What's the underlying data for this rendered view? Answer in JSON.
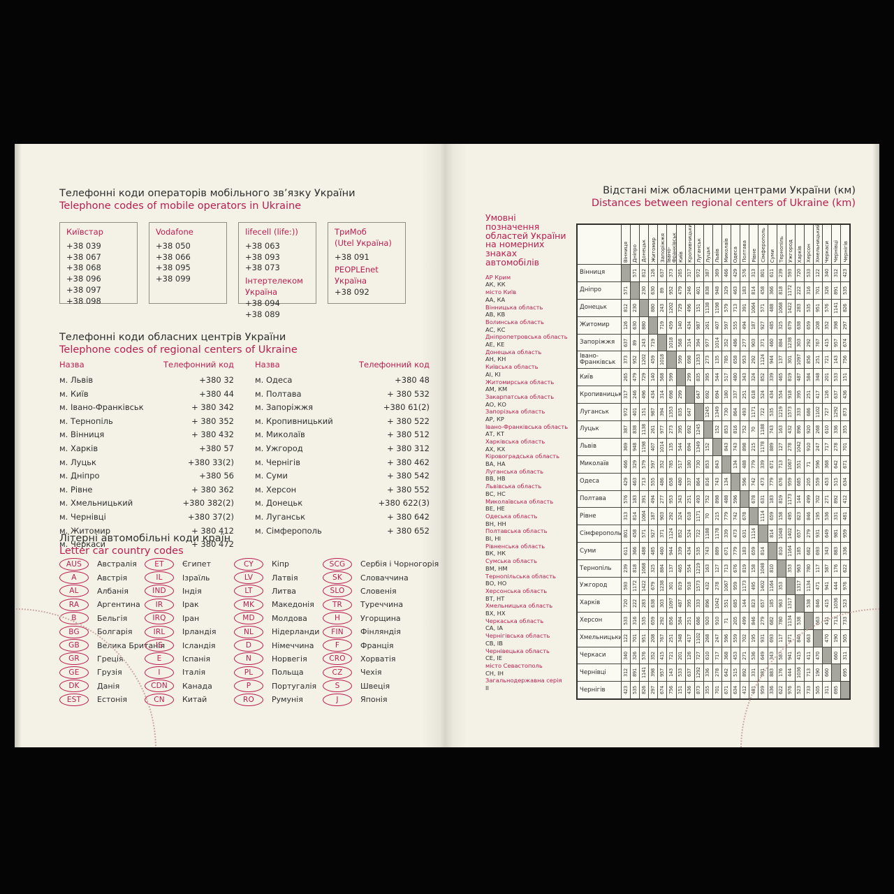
{
  "left": {
    "mobile": {
      "title_uk": "Телефонні коди операторів мобільного зв’язку України",
      "title_en": "Telephone codes of mobile operators in Ukraine",
      "operators": [
        {
          "name": "Київстар",
          "codes": [
            "+38 039",
            "+38 067",
            "+38 068",
            "+38 096",
            "+38 097",
            "+38 098"
          ]
        },
        {
          "name": "Vodafone",
          "codes": [
            "+38 050",
            "+38 066",
            "+38 095",
            "+38 099"
          ]
        },
        {
          "name": "lifecell (life:))",
          "codes": [
            "+38 063",
            "+38 093",
            "+38 073"
          ],
          "name2": "Інтертелеком Україна",
          "codes2": [
            "+38 094",
            "+38 089"
          ]
        },
        {
          "name": "ТриМоб\n(Utel Україна)",
          "codes": [
            "+38 091"
          ],
          "name2": "PEOPLEnet\nУкраїна",
          "codes2": [
            "+38 092"
          ]
        }
      ]
    },
    "city": {
      "title_uk": "Телефонні коди обласних центрів України",
      "title_en": "Telephone codes of regional centers of Ukraine",
      "header_name": "Назва",
      "header_code": "Телефонний код",
      "col1": [
        [
          "м. Львів",
          "+380 32"
        ],
        [
          "м. Київ",
          "+380 44"
        ],
        [
          "м. Івано-Франківськ",
          "+ 380 342"
        ],
        [
          "м. Тернопіль",
          "+ 380 352"
        ],
        [
          "м. Вінниця",
          "+ 380 432"
        ],
        [
          "м. Харків",
          "+380 57"
        ],
        [
          "м. Луцьк",
          "+380 33(2)"
        ],
        [
          "м. Дніпро",
          "+380 56"
        ],
        [
          "м. Рівне",
          "+ 380 362"
        ],
        [
          "м. Хмельницький",
          "+380 382(2)"
        ],
        [
          "м. Чернівці",
          "+380 37(2)"
        ],
        [
          "м. Житомир",
          "+ 380 412"
        ],
        [
          "м. Черкаси",
          "+ 380 472"
        ]
      ],
      "col2": [
        [
          "м. Одеса",
          "+380 48"
        ],
        [
          "м. Полтава",
          "+ 380 532"
        ],
        [
          "м. Запоріжжя",
          "+380 61(2)"
        ],
        [
          "м. Кропивницький",
          "+ 380 522"
        ],
        [
          "м. Миколаїв",
          "+ 380 512"
        ],
        [
          "м. Ужгород",
          "+ 380 312"
        ],
        [
          "м. Чернігів",
          "+ 380 462"
        ],
        [
          "м. Суми",
          "+ 380 542"
        ],
        [
          "м. Херсон",
          "+ 380 552"
        ],
        [
          "м. Донецьк",
          "+380 622(3)"
        ],
        [
          "м. Луганськ",
          "+ 380 642"
        ],
        [
          "м. Сімферополь",
          "+ 380 652"
        ]
      ]
    },
    "car": {
      "title_uk": "Літерні автомобільні коди країн",
      "title_en": "Letter car country codes",
      "columns": [
        [
          [
            "AUS",
            "Австралія"
          ],
          [
            "A",
            "Австрія"
          ],
          [
            "AL",
            "Албанія"
          ],
          [
            "RA",
            "Аргентина"
          ],
          [
            "B",
            "Бельгія"
          ],
          [
            "BG",
            "Болгарія"
          ],
          [
            "GB",
            "Велика Британія"
          ],
          [
            "GR",
            "Греція"
          ],
          [
            "GE",
            "Грузія"
          ],
          [
            "DK",
            "Данія"
          ],
          [
            "EST",
            "Естонія"
          ]
        ],
        [
          [
            "ET",
            "Єгипет"
          ],
          [
            "IL",
            "Ізраїль"
          ],
          [
            "IND",
            "Індія"
          ],
          [
            "IR",
            "Ірак"
          ],
          [
            "IRQ",
            "Іран"
          ],
          [
            "IRL",
            "Ірландія"
          ],
          [
            "IS",
            "Ісландія"
          ],
          [
            "E",
            "Іспанія"
          ],
          [
            "I",
            "Італія"
          ],
          [
            "CDN",
            "Канада"
          ],
          [
            "CN",
            "Китай"
          ]
        ],
        [
          [
            "CY",
            "Кіпр"
          ],
          [
            "LV",
            "Латвія"
          ],
          [
            "LT",
            "Литва"
          ],
          [
            "MK",
            "Македонія"
          ],
          [
            "MD",
            "Молдова"
          ],
          [
            "NL",
            "Нідерланди"
          ],
          [
            "D",
            "Німеччина"
          ],
          [
            "N",
            "Норвегія"
          ],
          [
            "PL",
            "Польща"
          ],
          [
            "P",
            "Португалія"
          ],
          [
            "RO",
            "Румунія"
          ]
        ],
        [
          [
            "SCG",
            "Сербія і Чорногорія"
          ],
          [
            "SK",
            "Словаччина"
          ],
          [
            "SLO",
            "Словенія"
          ],
          [
            "TR",
            "Туреччина"
          ],
          [
            "H",
            "Угорщина"
          ],
          [
            "FIN",
            "Фінляндія"
          ],
          [
            "F",
            "Франція"
          ],
          [
            "CRO",
            "Хорватія"
          ],
          [
            "CZ",
            "Чехія"
          ],
          [
            "S",
            "Швеція"
          ],
          [
            "J",
            "Японія"
          ]
        ]
      ]
    }
  },
  "right": {
    "title_uk": "Відстані між обласними центрами України (км)",
    "title_en": "Distances between regional centers of Ukraine (km)",
    "legend": {
      "title": "Умовні позначення областей України на номерних знаках автомобілів",
      "items": [
        {
          "region": "АР Крим",
          "codes": "АК, КК"
        },
        {
          "region": "місто Київ",
          "codes": "АА, КА"
        },
        {
          "region": "Вінницька область",
          "codes": "АВ, КВ"
        },
        {
          "region": "Волинська область",
          "codes": "АС, КС"
        },
        {
          "region": "Дніпропетровська область",
          "codes": "АЕ, КЕ"
        },
        {
          "region": "Донецька область",
          "codes": "АН, КН"
        },
        {
          "region": "Київська область",
          "codes": "АІ, КІ"
        },
        {
          "region": "Житомирська область",
          "codes": "АМ, КМ"
        },
        {
          "region": "Закарпатська область",
          "codes": "АО, КО"
        },
        {
          "region": "Запорізька область",
          "codes": "АР, КР"
        },
        {
          "region": "Івано-Франківська область",
          "codes": "АТ, КТ"
        },
        {
          "region": "Харківська область",
          "codes": "АХ, КХ"
        },
        {
          "region": "Кіровоградська область",
          "codes": "ВА, НА"
        },
        {
          "region": "Луганська область",
          "codes": "ВВ, НВ"
        },
        {
          "region": "Львівська область",
          "codes": "ВС, НС"
        },
        {
          "region": "Миколаївська область",
          "codes": "ВЕ, НЕ"
        },
        {
          "region": "Одеська область",
          "codes": "ВН, НН"
        },
        {
          "region": "Полтавська область",
          "codes": "ВІ, НІ"
        },
        {
          "region": "Рівненська область",
          "codes": "ВК, НК"
        },
        {
          "region": "Сумська область",
          "codes": "ВМ, НМ"
        },
        {
          "region": "Тернопільська область",
          "codes": "ВО, НО"
        },
        {
          "region": "Херсонська область",
          "codes": "ВТ, НТ"
        },
        {
          "region": "Хмельницька область",
          "codes": "ВХ, НХ"
        },
        {
          "region": "Черкаська область",
          "codes": "СА, ІА"
        },
        {
          "region": "Чернігівська область",
          "codes": "СВ, ІВ"
        },
        {
          "region": "Чернівецька область",
          "codes": "СЕ, ІЕ"
        },
        {
          "region": "місто Севастополь",
          "codes": "СН, ІН"
        },
        {
          "region": "Загальнодержавна серія",
          "codes": "ІІ"
        }
      ]
    },
    "distance_table": {
      "cities": [
        "Вінниця",
        "Дніпро",
        "Донецьк",
        "Житомир",
        "Запоріжжя",
        "Івано-Франківськ",
        "Київ",
        "Кропивницький",
        "Луганськ",
        "Луцьк",
        "Львів",
        "Миколаїв",
        "Одеса",
        "Полтава",
        "Рівне",
        "Сімферополь",
        "Суми",
        "Тернопіль",
        "Ужгород",
        "Харків",
        "Херсон",
        "Хмельницький",
        "Черкаси",
        "Чернівці",
        "Чернігів"
      ],
      "pairs": [
        [
          571,
          812,
          126,
          637,
          373,
          265,
          317,
          972,
          387,
          369,
          466,
          429,
          576,
          313,
          801,
          611,
          239,
          593,
          720,
          533,
          122,
          340,
          312,
          423
        ],
        [
          230,
          630,
          89,
          952,
          479,
          246,
          401,
          838,
          948,
          329,
          463,
          183,
          814,
          458,
          366,
          818,
          1172,
          222,
          316,
          701,
          326,
          891,
          535
        ],
        [
          880,
          243,
          1202,
          729,
          496,
          151,
          1138,
          1198,
          579,
          713,
          391,
          1064,
          571,
          488,
          1068,
          1422,
          283,
          535,
          951,
          576,
          1141,
          826
        ],
        [
          719,
          459,
          140,
          434,
          987,
          261,
          407,
          597,
          555,
          494,
          187,
          927,
          485,
          325,
          679,
          638,
          659,
          208,
          352,
          398,
          297
        ],
        [
          1018,
          568,
          314,
          394,
          977,
          1014,
          352,
          486,
          277,
          903,
          371,
          460,
          884,
          1238,
          303,
          292,
          767,
          415,
          957,
          674
        ],
        [
          599,
          698,
          1353,
          273,
          135,
          785,
          658,
          953,
          292,
          1124,
          944,
          137,
          301,
          1097,
          856,
          251,
          721,
          143,
          756
        ],
        [
          299,
          835,
          395,
          544,
          517,
          480,
          343,
          324,
          852,
          339,
          465,
          819,
          487,
          584,
          348,
          201,
          533,
          151
        ],
        [
          647,
          692,
          694,
          180,
          337,
          251,
          618,
          524,
          434,
          554,
          918,
          395,
          251,
          417,
          126,
          637,
          436
        ],
        [
          1245,
          1349,
          730,
          864,
          493,
          1171,
          722,
          535,
          1219,
          1573,
          333,
          686,
          1102,
          727,
          1292,
          873
        ],
        [
          152,
          853,
          816,
          752,
          70,
          1188,
          743,
          163,
          432,
          896,
          920,
          268,
          610,
          336,
          355
        ],
        [
          843,
          743,
          898,
          215,
          1178,
          889,
          127,
          278,
          1042,
          910,
          247,
          717,
          278,
          701
        ],
        [
          134,
          488,
          779,
          339,
          671,
          713,
          1067,
          551,
          71,
          596,
          368,
          642,
          671
        ],
        [
          596,
          742,
          473,
          779,
          676,
          959,
          685,
          205,
          559,
          453,
          515,
          634
        ],
        [
          678,
          631,
          183,
          819,
          1173,
          144,
          499,
          702,
          271,
          892,
          412
        ],
        [
          1114,
          659,
          158,
          495,
          823,
          846,
          195,
          536,
          331,
          481
        ],
        [
          814,
          1048,
          1402,
          657,
          279,
          931,
          649,
          981,
          959
        ],
        [
          810,
          1164,
          185,
          682,
          693,
          343,
          883,
          336
        ],
        [
          353,
          963,
          780,
          117,
          587,
          176,
          622
        ],
        [
          1317,
          1134,
          471,
          941,
          444,
          976
        ],
        [
          538,
          846,
          415,
          1036,
          523
        ],
        [
          663,
          411,
          713,
          733
        ],
        [
          470,
          190,
          505
        ],
        [
          660,
          311
        ],
        [
          695
        ]
      ]
    }
  }
}
